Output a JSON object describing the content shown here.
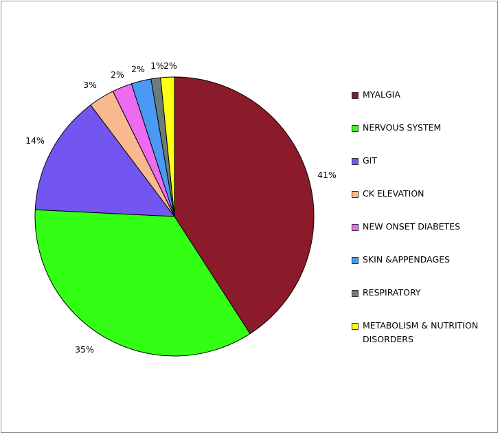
{
  "chart_data": {
    "type": "pie",
    "title": "",
    "slices": [
      {
        "label": "MYALGIA",
        "value": 41,
        "display": "41%",
        "color": "#8B1A2A"
      },
      {
        "label": "NERVOUS SYSTEM",
        "value": 35,
        "display": "35%",
        "color": "#33FF14"
      },
      {
        "label": "GIT",
        "value": 14,
        "display": "14%",
        "color": "#7355F0"
      },
      {
        "label": "CK ELEVATION",
        "value": 3,
        "display": "3%",
        "color": "#F9B98E"
      },
      {
        "label": "NEW ONSET DIABETES",
        "value": 2.3,
        "display": "2%",
        "color": "#EC6BF0"
      },
      {
        "label": "SKIN &APPENDAGES",
        "value": 2.3,
        "display": "2%",
        "color": "#4A99F2"
      },
      {
        "label": "RESPIRATORY",
        "value": 1.1,
        "display": "1%",
        "color": "#6A7C7C"
      },
      {
        "label": "METABOLISM & NUTRITION DISORDERS",
        "value": 1.6,
        "display": "2%",
        "color": "#FFFF14"
      }
    ],
    "legend_position": "right"
  }
}
